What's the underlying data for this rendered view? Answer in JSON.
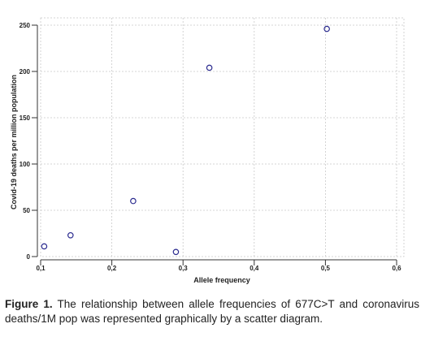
{
  "chart_data": {
    "type": "scatter",
    "title": "",
    "xlabel": "Allele frequency",
    "ylabel": "Covid-19 deaths per million population",
    "xlim": [
      0.1,
      0.6
    ],
    "ylim": [
      0,
      250
    ],
    "xticks": [
      "0,1",
      "0,2",
      "0,3",
      "0,4",
      "0,5",
      "0,6"
    ],
    "xtick_values": [
      0.1,
      0.2,
      0.3,
      0.4,
      0.5,
      0.6
    ],
    "yticks": [
      "0",
      "50",
      "100",
      "150",
      "200",
      "250"
    ],
    "ytick_values": [
      0,
      50,
      100,
      150,
      200,
      250
    ],
    "grid": true,
    "marker": "open-circle",
    "marker_color": "#2b2b8f",
    "points": [
      {
        "x": 0.105,
        "y": 11
      },
      {
        "x": 0.142,
        "y": 23
      },
      {
        "x": 0.23,
        "y": 60
      },
      {
        "x": 0.29,
        "y": 5
      },
      {
        "x": 0.337,
        "y": 204
      },
      {
        "x": 0.502,
        "y": 246
      }
    ]
  },
  "caption": {
    "label": "Figure 1.",
    "text": "The relationship between allele frequencies of 677C>T and  coronavirus deaths/1M pop  was represented graphically by a scatter diagram."
  }
}
